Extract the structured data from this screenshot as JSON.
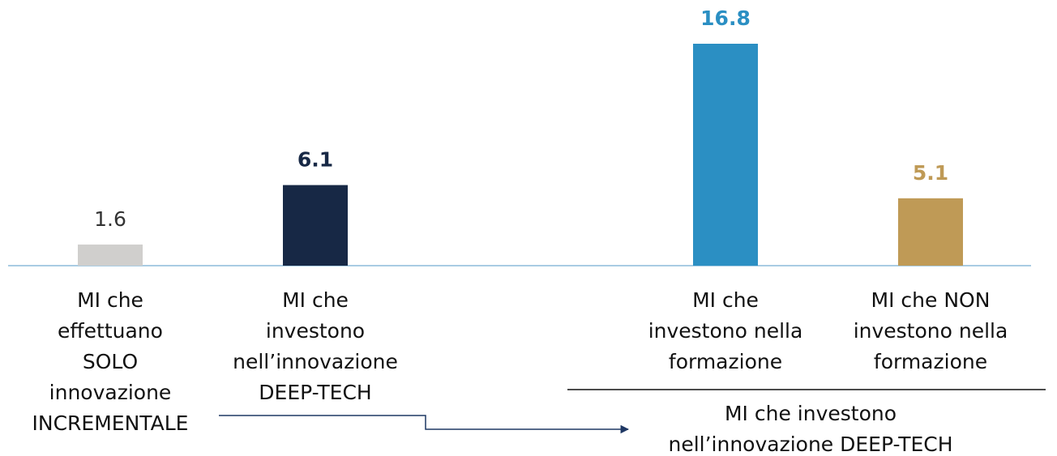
{
  "chart_data": {
    "type": "bar",
    "categories": [
      [
        "MI che",
        "effettuano",
        "SOLO",
        "innovazione",
        "INCREMENTALE"
      ],
      [
        "MI che",
        "investono",
        "nell’innovazione",
        "DEEP-TECH"
      ],
      [
        "MI che",
        "investono nella",
        "formazione"
      ],
      [
        "MI che NON",
        "investono nella",
        "formazione"
      ]
    ],
    "values": [
      1.6,
      6.1,
      16.8,
      5.1
    ],
    "colors": [
      "#d0cfcd",
      "#172845",
      "#2b8fc3",
      "#bf9a56"
    ],
    "label_colors": [
      "#333333",
      "#172845",
      "#2b8fc3",
      "#bf9a56"
    ],
    "annotation": [
      "MI che investono",
      "nell’innovazione DEEP-TECH"
    ]
  }
}
